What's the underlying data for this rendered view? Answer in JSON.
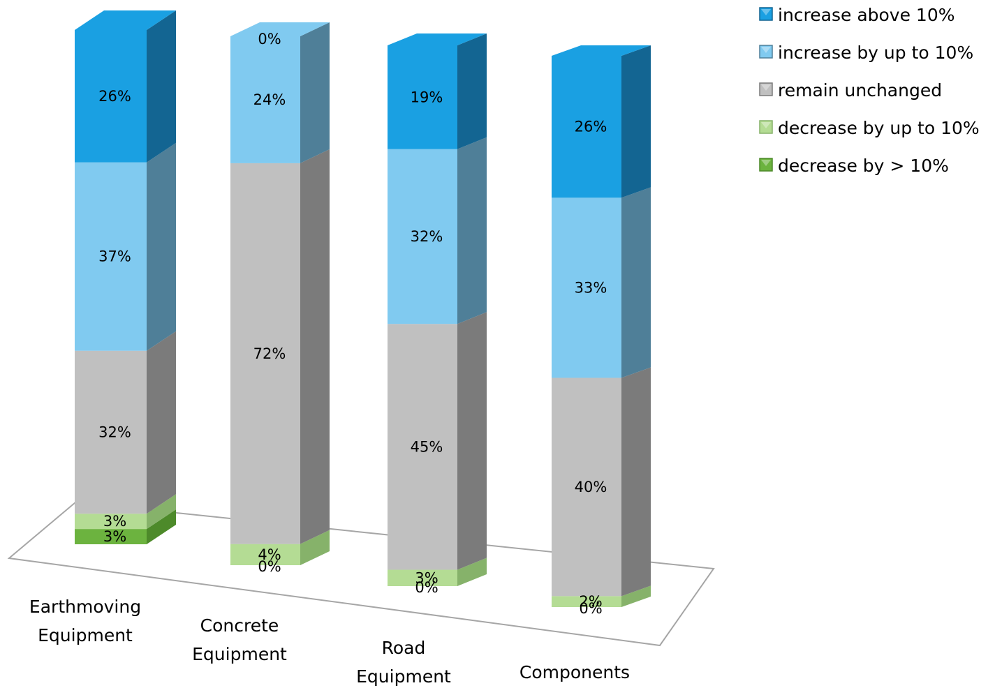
{
  "chart_data": {
    "type": "bar",
    "stacked": true,
    "three_d": true,
    "categories": [
      [
        "Earthmoving",
        "Equipment"
      ],
      [
        "Concrete",
        "Equipment"
      ],
      [
        "Road",
        "Equipment"
      ],
      [
        "Components"
      ]
    ],
    "series": [
      {
        "name": "decrease by > 10%",
        "values": [
          3,
          0,
          0,
          0
        ],
        "color": "#6cb33f",
        "side": "#4d8a2a"
      },
      {
        "name": "decrease by up to 10%",
        "values": [
          3,
          4,
          3,
          2
        ],
        "color": "#b4dc94",
        "side": "#86b26a"
      },
      {
        "name": "remain unchanged",
        "values": [
          32,
          72,
          45,
          40
        ],
        "color": "#c0c0c0",
        "side": "#7b7b7b"
      },
      {
        "name": "increase by up to 10%",
        "values": [
          37,
          24,
          32,
          33
        ],
        "color": "#80caf0",
        "side": "#4f7f98"
      },
      {
        "name": "increase above 10%",
        "values": [
          26,
          0,
          19,
          26
        ],
        "color": "#1aa0e2",
        "side": "#136592"
      }
    ],
    "data_labels": [
      [
        "3%",
        "3%",
        "32%",
        "37%",
        "26%"
      ],
      [
        "0%",
        "4%",
        "72%",
        "24%",
        "0%"
      ],
      [
        "0%",
        "3%",
        "45%",
        "32%",
        "19%"
      ],
      [
        "0%",
        "2%",
        "40%",
        "33%",
        "26%"
      ]
    ],
    "legend_position": "top-right",
    "title": "",
    "xlabel": "",
    "ylabel": ""
  }
}
